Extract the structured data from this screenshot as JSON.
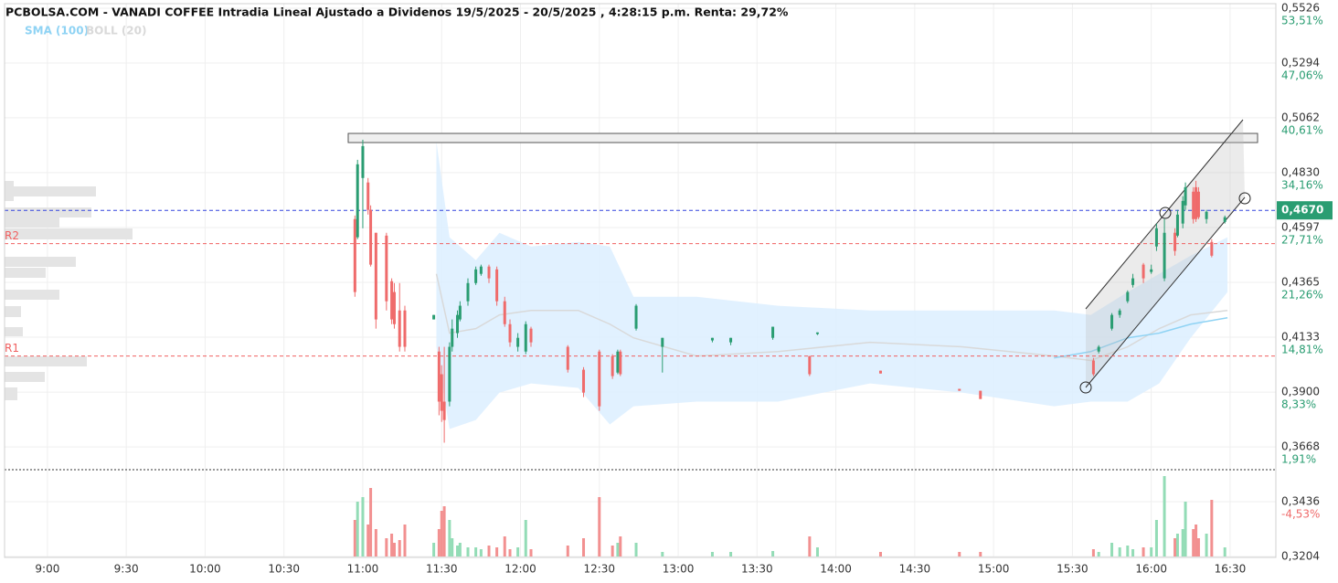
{
  "chart_data": {
    "type": "candlestick",
    "title": "PCBOLSA.COM - VANADI COFFEE Intradia Lineal Ajustado a Dividenos 19/5/2025 - 20/5/2025 , 4:28:15 p.m. Renta: 29,72%",
    "up_color": "#2a9d72",
    "down_color": "#ef6b6b",
    "volume_up_color": "#93dcb6",
    "volume_down_color": "#f29090",
    "grid": true,
    "x": [
      657,
      658,
      660,
      662,
      663,
      665,
      669,
      671,
      672,
      674,
      676,
      687,
      689,
      690,
      691,
      693,
      694,
      696,
      697,
      700,
      703,
      705,
      708,
      711,
      714,
      716,
      719,
      722,
      724,
      738,
      744,
      750,
      755,
      757,
      758,
      764,
      774,
      793,
      800,
      816,
      830,
      833,
      857,
      887,
      895,
      938,
      940,
      945,
      948,
      951,
      953,
      957,
      960,
      962,
      965,
      969,
      970,
      972,
      973,
      976,
      977,
      978,
      981,
      983,
      988
    ],
    "open": [
      0.4633,
      0.4556,
      0.4807,
      0.4788,
      0.4672,
      0.4575,
      0.4563,
      0.437,
      0.4324,
      0.4246,
      0.4246,
      0.4208,
      0.4072,
      0.3976,
      0.386,
      0.386,
      0.4092,
      0.415,
      0.4208,
      0.4285,
      0.4362,
      0.4401,
      0.4432,
      0.442,
      0.4285,
      0.4188,
      0.4092,
      0.4072,
      0.4169,
      0.4092,
      0.3995,
      0.4072,
      0.4053,
      0.3983,
      0.4072,
      0.4169,
      0.4092,
      0.4119,
      0.4111,
      0.413,
      0.4053,
      0.4146,
      0.3991,
      0.3914,
      0.3906,
      0.4034,
      0.4072,
      0.4169,
      0.4227,
      0.4285,
      0.4354,
      0.444,
      0.4409,
      0.4517,
      0.4382,
      0.4575,
      0.4563,
      0.4614,
      0.4691,
      0.4749,
      0.4768,
      0.4749,
      0.4633,
      0.4536,
      0.4621
    ],
    "high": [
      0.4648,
      0.4884,
      0.4969,
      0.4807,
      0.4691,
      0.4575,
      0.4575,
      0.4382,
      0.4362,
      0.4362,
      0.4266,
      0.4227,
      0.4092,
      0.4014,
      0.4092,
      0.4111,
      0.4208,
      0.4246,
      0.4285,
      0.4382,
      0.4432,
      0.444,
      0.444,
      0.4432,
      0.4304,
      0.4208,
      0.415,
      0.42,
      0.4177,
      0.4099,
      0.4006,
      0.408,
      0.4061,
      0.408,
      0.408,
      0.4273,
      0.413,
      0.413,
      0.413,
      0.4177,
      0.4053,
      0.4153,
      0.3991,
      0.3914,
      0.3906,
      0.4045,
      0.4099,
      0.4235,
      0.4254,
      0.4331,
      0.4401,
      0.4447,
      0.444,
      0.4614,
      0.4633,
      0.4594,
      0.4672,
      0.473,
      0.4788,
      0.4768,
      0.4795,
      0.4768,
      0.4672,
      0.4548,
      0.4648
    ],
    "low": [
      0.4304,
      0.4548,
      0.4594,
      0.4652,
      0.4432,
      0.4169,
      0.4246,
      0.4188,
      0.4169,
      0.4072,
      0.4072,
      0.4208,
      0.3802,
      0.3774,
      0.3686,
      0.384,
      0.4072,
      0.413,
      0.42,
      0.4266,
      0.4354,
      0.4393,
      0.4362,
      0.4266,
      0.4177,
      0.4092,
      0.4072,
      0.4061,
      0.4092,
      0.3983,
      0.3879,
      0.3821,
      0.3956,
      0.3976,
      0.3968,
      0.4161,
      0.3983,
      0.4111,
      0.4099,
      0.4122,
      0.3968,
      0.4142,
      0.3979,
      0.3906,
      0.3871,
      0.3968,
      0.4064,
      0.4161,
      0.4215,
      0.4277,
      0.4343,
      0.4362,
      0.4401,
      0.4498,
      0.437,
      0.4478,
      0.4556,
      0.4594,
      0.4672,
      0.4614,
      0.4621,
      0.4633,
      0.4614,
      0.4471,
      0.4614
    ],
    "close": [
      0.4324,
      0.4865,
      0.4942,
      0.4672,
      0.444,
      0.4208,
      0.4285,
      0.4208,
      0.4188,
      0.4092,
      0.4092,
      0.4227,
      0.386,
      0.3821,
      0.3782,
      0.4092,
      0.4169,
      0.4227,
      0.4266,
      0.4362,
      0.442,
      0.4432,
      0.4382,
      0.4285,
      0.4188,
      0.4111,
      0.413,
      0.4188,
      0.4111,
      0.3995,
      0.3898,
      0.384,
      0.3968,
      0.4072,
      0.3976,
      0.4266,
      0.413,
      0.413,
      0.413,
      0.4177,
      0.3976,
      0.4153,
      0.3979,
      0.3906,
      0.3871,
      0.3976,
      0.4092,
      0.4227,
      0.4246,
      0.4324,
      0.4382,
      0.4382,
      0.442,
      0.4594,
      0.4575,
      0.4498,
      0.4652,
      0.471,
      0.4768,
      0.4633,
      0.4633,
      0.4641,
      0.4664,
      0.4478,
      0.4641
    ],
    "volume": [
      40,
      60,
      65,
      35,
      75,
      30,
      20,
      25,
      15,
      18,
      35,
      15,
      30,
      50,
      55,
      40,
      20,
      12,
      15,
      10,
      10,
      8,
      12,
      10,
      22,
      8,
      10,
      40,
      8,
      12,
      20,
      65,
      12,
      15,
      22,
      15,
      5,
      5,
      5,
      6,
      22,
      10,
      5,
      5,
      5,
      8,
      5,
      15,
      10,
      12,
      8,
      10,
      10,
      40,
      88,
      20,
      25,
      30,
      60,
      30,
      35,
      20,
      25,
      62,
      10
    ],
    "series": [
      {
        "name": "SMA (100)",
        "color": "#8fd3f4",
        "x": [
          923,
          937,
          951,
          963,
          975,
          989
        ],
        "values": [
          0.4045,
          0.4072,
          0.413,
          0.415,
          0.4188,
          0.4215
        ]
      },
      {
        "name": "BOLL (20)",
        "color": "#d9d9d9",
        "band_color": "#dcefff",
        "x": [
          688,
          693,
          703,
          712,
          724,
          742,
          754,
          763,
          787,
          818,
          853,
          888,
          923,
          937,
          951,
          963,
          975,
          989
        ],
        "upper": [
          0.4962,
          0.4556,
          0.4459,
          0.4575,
          0.4517,
          0.4536,
          0.4517,
          0.4304,
          0.4304,
          0.4266,
          0.4246,
          0.4246,
          0.4246,
          0.4227,
          0.4324,
          0.4401,
          0.4478,
          0.4556
        ],
        "middle": [
          0.4401,
          0.415,
          0.4169,
          0.4227,
          0.4246,
          0.4246,
          0.4188,
          0.413,
          0.4053,
          0.4072,
          0.4111,
          0.4092,
          0.4053,
          0.4034,
          0.4092,
          0.4169,
          0.4227,
          0.4246
        ],
        "lower": [
          0.4092,
          0.3744,
          0.3782,
          0.3898,
          0.3937,
          0.3918,
          0.3763,
          0.384,
          0.386,
          0.386,
          0.3937,
          0.3898,
          0.384,
          0.386,
          0.386,
          0.3937,
          0.413,
          0.4324
        ]
      }
    ],
    "levels": [
      {
        "name": "R2",
        "value": 0.4529,
        "color": "#f06060"
      },
      {
        "name": "R1",
        "value": 0.4053,
        "color": "#f06060"
      }
    ],
    "last_price": {
      "value": 0.467,
      "label": "0,4670",
      "color": "#2a9d72",
      "line_color": "#3344dd"
    },
    "xlim": [
      523.7,
      1007.4
    ],
    "xticks": [
      {
        "value": 540,
        "label": "9:00"
      },
      {
        "value": 570,
        "label": "9:30"
      },
      {
        "value": 600,
        "label": "10:00"
      },
      {
        "value": 630,
        "label": "10:30"
      },
      {
        "value": 660,
        "label": "11:00"
      },
      {
        "value": 690,
        "label": "11:30"
      },
      {
        "value": 720,
        "label": "12:00"
      },
      {
        "value": 750,
        "label": "12:30"
      },
      {
        "value": 780,
        "label": "13:00"
      },
      {
        "value": 810,
        "label": "13:30"
      },
      {
        "value": 840,
        "label": "14:00"
      },
      {
        "value": 870,
        "label": "14:30"
      },
      {
        "value": 900,
        "label": "15:00"
      },
      {
        "value": 930,
        "label": "15:30"
      },
      {
        "value": 960,
        "label": "16:00"
      },
      {
        "value": 990,
        "label": "16:30"
      }
    ],
    "ylim": [
      0.3204,
      0.5526
    ],
    "yticks": [
      {
        "value": 0.5526,
        "label": "0,5526"
      },
      {
        "value": 0.5294,
        "label": "0,5294"
      },
      {
        "value": 0.5062,
        "label": "0,5062"
      },
      {
        "value": 0.483,
        "label": "0,4830"
      },
      {
        "value": 0.4597,
        "label": "0,4597"
      },
      {
        "value": 0.4365,
        "label": "0,4365"
      },
      {
        "value": 0.4133,
        "label": "0,4133"
      },
      {
        "value": 0.39,
        "label": "0,3900"
      },
      {
        "value": 0.3668,
        "label": "0,3668"
      },
      {
        "value": 0.3436,
        "label": "0,3436"
      },
      {
        "value": 0.3204,
        "label": "0,3204"
      }
    ],
    "y2lim": [
      -11,
      53.51
    ],
    "y2ticks": [
      {
        "value": 53.51,
        "label": "53,51%"
      },
      {
        "value": 47.06,
        "label": "47,06%"
      },
      {
        "value": 40.61,
        "label": "40,61%"
      },
      {
        "value": 34.16,
        "label": "34,16%"
      },
      {
        "value": 27.71,
        "label": "27,71%"
      },
      {
        "value": 21.26,
        "label": "21,26%"
      },
      {
        "value": 14.81,
        "label": "14,81%"
      },
      {
        "value": 8.33,
        "label": "8,33%"
      },
      {
        "value": 1.91,
        "label": "1,91%"
      },
      {
        "value": -4.53,
        "label": "-4,53%"
      }
    ]
  }
}
